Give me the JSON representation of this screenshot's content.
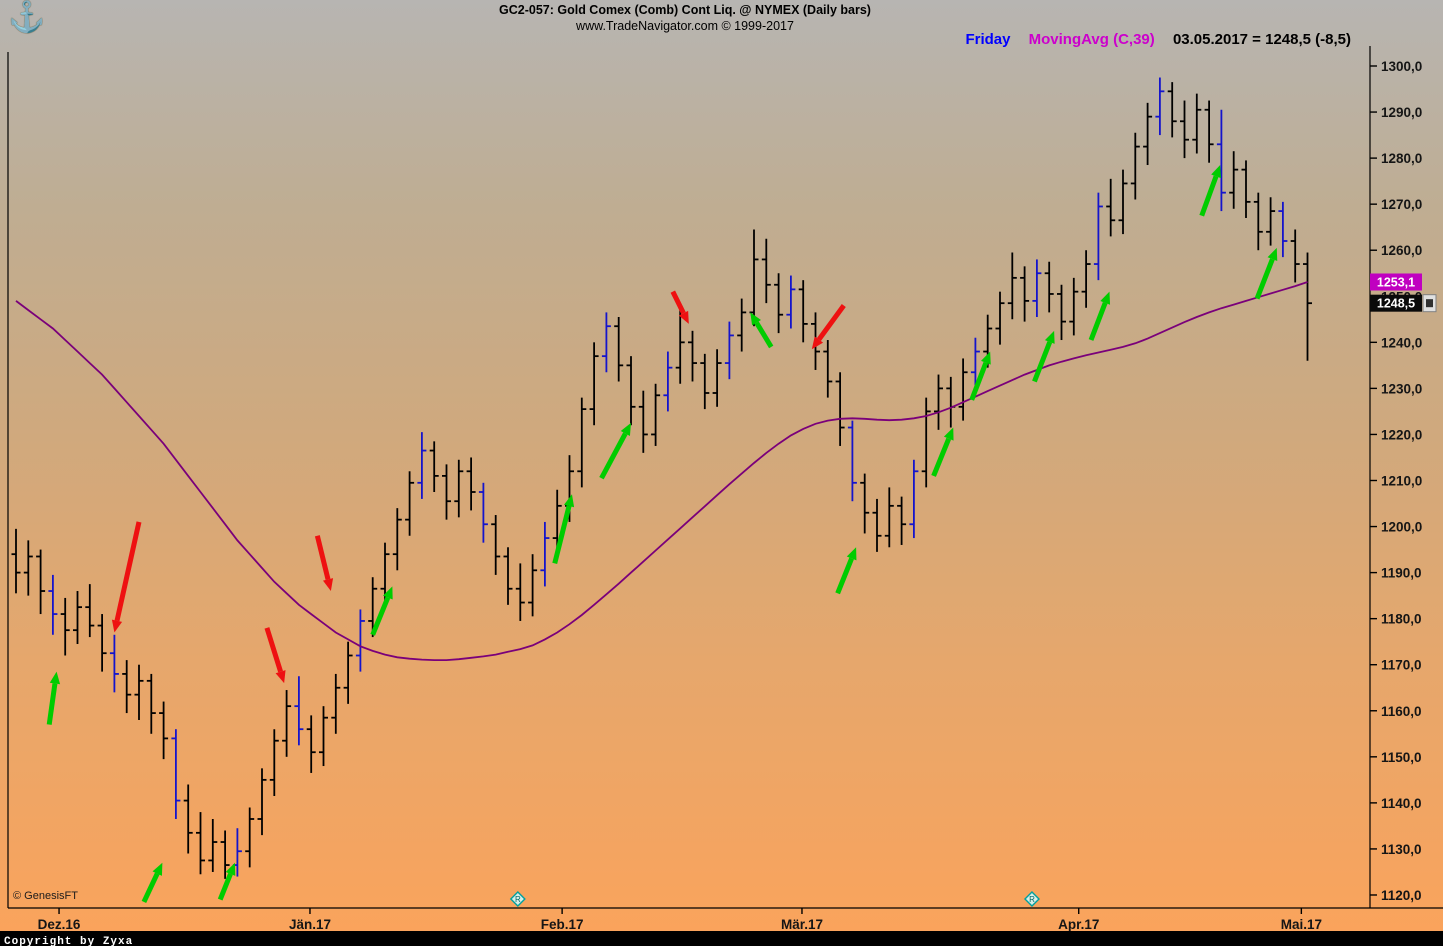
{
  "header": {
    "anchor_icon": "⚓",
    "title": "GC2-057:  Gold Comex (Comb) Cont Liq. @ NYMEX  (Daily bars)",
    "subtitle": "www.TradeNavigator.com © 1999-2017",
    "legend": {
      "day_label": "Friday",
      "indicator_label": "MovingAvg (C,39)",
      "quote_label": "03.05.2017 = 1248,5 (-8,5)",
      "day_color": "#0000ff",
      "indicator_color": "#cc00cc",
      "quote_color": "#000000"
    }
  },
  "footer": {
    "genesis": "© GenesisFT",
    "copyright": "Copyright by Zyxa"
  },
  "chart_data": {
    "type": "ohlc-bar",
    "title": "GC2-057: Gold Comex (Comb) Cont Liq. @ NYMEX (Daily bars)",
    "date": "03.05.2017",
    "last_close": 1248.5,
    "change": -8.5,
    "y_axis": {
      "side": "right",
      "min": 1120,
      "max": 1300,
      "step": 10,
      "labels": [
        "1300,0",
        "1290,0",
        "1280,0",
        "1270,0",
        "1260,0",
        "1250,0",
        "1240,0",
        "1230,0",
        "1220,0",
        "1210,0",
        "1200,0",
        "1190,0",
        "1180,0",
        "1170,0",
        "1160,0",
        "1150,0",
        "1140,0",
        "1130,0",
        "1120,0"
      ]
    },
    "x_axis": {
      "ticks": [
        {
          "label": "Dez.16",
          "i": 3.5
        },
        {
          "label": "Jän.17",
          "i": 23.9
        },
        {
          "label": "Feb.17",
          "i": 44.4
        },
        {
          "label": "Mär.17",
          "i": 63.9
        },
        {
          "label": "Apr.17",
          "i": 86.4
        },
        {
          "label": "Mai.17",
          "i": 104.5
        }
      ]
    },
    "bar_format": "[open, high, low, close, friday?1]",
    "bars": [
      [
        1194,
        1199.5,
        1185.5,
        1190
      ],
      [
        1190,
        1197,
        1185,
        1193.5
      ],
      [
        1193.5,
        1195,
        1181,
        1186
      ],
      [
        1186,
        1189.5,
        1176.5,
        1181,
        1
      ],
      [
        1181,
        1184.5,
        1172,
        1177.5
      ],
      [
        1177.5,
        1186,
        1174.5,
        1182.5
      ],
      [
        1182.5,
        1187.5,
        1176,
        1178.5
      ],
      [
        1178.5,
        1181,
        1168.5,
        1172.5
      ],
      [
        1172.5,
        1176.5,
        1164,
        1168,
        1
      ],
      [
        1168,
        1171,
        1159.5,
        1163.5
      ],
      [
        1163.5,
        1170,
        1158,
        1166.5
      ],
      [
        1166.5,
        1168,
        1155,
        1159.5
      ],
      [
        1159.5,
        1162,
        1149.5,
        1154
      ],
      [
        1154,
        1156,
        1136.5,
        1140.5,
        1
      ],
      [
        1140.5,
        1144,
        1129,
        1133.5
      ],
      [
        1133.5,
        1138,
        1124.5,
        1127.5
      ],
      [
        1127.5,
        1136.5,
        1125,
        1131.5
      ],
      [
        1131.5,
        1134,
        1123.5,
        1126.5
      ],
      [
        1126.5,
        1134.5,
        1124,
        1129.5,
        1
      ],
      [
        1129.5,
        1139,
        1126,
        1136.5
      ],
      [
        1136.5,
        1147.5,
        1133,
        1145
      ],
      [
        1145,
        1156,
        1141.5,
        1153.5
      ],
      [
        1153.5,
        1164.5,
        1150,
        1161
      ],
      [
        1161,
        1167.5,
        1152.5,
        1156,
        1
      ],
      [
        1156,
        1159,
        1146.5,
        1151
      ],
      [
        1151,
        1161,
        1148,
        1158.5
      ],
      [
        1158.5,
        1168,
        1155,
        1165
      ],
      [
        1165,
        1175,
        1161.5,
        1172
      ],
      [
        1172,
        1182,
        1168.5,
        1179.5,
        1
      ],
      [
        1179.5,
        1189,
        1176,
        1186.5
      ],
      [
        1186.5,
        1196.5,
        1183,
        1194
      ],
      [
        1194,
        1204,
        1190.5,
        1201.5
      ],
      [
        1201.5,
        1212,
        1198,
        1209.5
      ],
      [
        1209.5,
        1220.5,
        1206,
        1216.5,
        1
      ],
      [
        1216.5,
        1218.5,
        1207.5,
        1211
      ],
      [
        1211,
        1213.5,
        1201.5,
        1205.5
      ],
      [
        1205.5,
        1214.5,
        1202,
        1212
      ],
      [
        1212,
        1215,
        1203.5,
        1207.5
      ],
      [
        1207.5,
        1209.5,
        1196.5,
        1200.5,
        1
      ],
      [
        1200.5,
        1202.5,
        1189.5,
        1193.5
      ],
      [
        1193.5,
        1195.5,
        1183,
        1186.5
      ],
      [
        1186.5,
        1192,
        1179.5,
        1183.5
      ],
      [
        1183.5,
        1194,
        1180.5,
        1190.5
      ],
      [
        1190.5,
        1201,
        1187,
        1197.5,
        1
      ],
      [
        1197.5,
        1208,
        1194,
        1204.5
      ],
      [
        1204.5,
        1215.5,
        1201,
        1212
      ],
      [
        1212,
        1228,
        1208.5,
        1225.5
      ],
      [
        1225.5,
        1240,
        1222,
        1237
      ],
      [
        1237,
        1246.5,
        1233.5,
        1243.5,
        1
      ],
      [
        1243.5,
        1245.5,
        1231.5,
        1235
      ],
      [
        1235,
        1237,
        1222,
        1226
      ],
      [
        1226,
        1229.5,
        1216,
        1220
      ],
      [
        1220,
        1231,
        1217.5,
        1228.5
      ],
      [
        1228.5,
        1238,
        1225,
        1234.5,
        1
      ],
      [
        1234.5,
        1248,
        1231,
        1240
      ],
      [
        1240,
        1242.5,
        1231.5,
        1235.5
      ],
      [
        1235.5,
        1237.5,
        1225.5,
        1229
      ],
      [
        1229,
        1238.5,
        1226,
        1235.5
      ],
      [
        1235.5,
        1244.5,
        1232,
        1241.5,
        1
      ],
      [
        1241.5,
        1249.5,
        1238,
        1246.5
      ],
      [
        1246.5,
        1264.5,
        1243.5,
        1258
      ],
      [
        1258,
        1262.5,
        1248.5,
        1252.5
      ],
      [
        1252.5,
        1255,
        1242,
        1246
      ],
      [
        1246,
        1254.5,
        1243,
        1251.5,
        1
      ],
      [
        1251.5,
        1253.5,
        1240,
        1244
      ],
      [
        1244,
        1246.5,
        1234,
        1238
      ],
      [
        1238,
        1240.5,
        1228,
        1231.5
      ],
      [
        1231.5,
        1233.5,
        1217.5,
        1221.5
      ],
      [
        1221.5,
        1223,
        1205.5,
        1209.5,
        1
      ],
      [
        1209.5,
        1211.5,
        1198.5,
        1203
      ],
      [
        1203,
        1206,
        1194.5,
        1198
      ],
      [
        1198,
        1208.5,
        1195.5,
        1204.5
      ],
      [
        1204.5,
        1206.5,
        1196,
        1200.5
      ],
      [
        1200.5,
        1214.5,
        1197.5,
        1212,
        1
      ],
      [
        1212,
        1228,
        1208.5,
        1225
      ],
      [
        1225,
        1233,
        1221,
        1230
      ],
      [
        1230,
        1232.5,
        1221.5,
        1226
      ],
      [
        1226,
        1236.5,
        1223,
        1233.5
      ],
      [
        1233.5,
        1241,
        1229.5,
        1238,
        1
      ],
      [
        1238,
        1246,
        1234.5,
        1243
      ],
      [
        1243,
        1251,
        1239.5,
        1248.5
      ],
      [
        1248.5,
        1259.5,
        1245,
        1254
      ],
      [
        1254,
        1256.5,
        1244.5,
        1249
      ],
      [
        1249,
        1258,
        1245.5,
        1255,
        1
      ],
      [
        1255,
        1257.5,
        1246.5,
        1250.5
      ],
      [
        1250.5,
        1252.5,
        1240.5,
        1244.5
      ],
      [
        1244.5,
        1254,
        1241.5,
        1251
      ],
      [
        1251,
        1260,
        1247.5,
        1257
      ],
      [
        1257,
        1272.5,
        1253.5,
        1269.5,
        1
      ],
      [
        1269.5,
        1275.5,
        1263,
        1266.5
      ],
      [
        1266.5,
        1277.5,
        1263.5,
        1274.5
      ],
      [
        1274.5,
        1285.5,
        1271,
        1282.5
      ],
      [
        1282.5,
        1292,
        1278.5,
        1289
      ],
      [
        1289,
        1297.5,
        1285,
        1294.5,
        1
      ],
      [
        1294.5,
        1296.5,
        1284.5,
        1288
      ],
      [
        1288,
        1292.5,
        1280,
        1284
      ],
      [
        1284,
        1294,
        1281,
        1290.5
      ],
      [
        1290.5,
        1292.5,
        1279,
        1283
      ],
      [
        1283,
        1290.5,
        1268.5,
        1272.5,
        1
      ],
      [
        1272.5,
        1281.5,
        1269,
        1277.5
      ],
      [
        1277.5,
        1279.5,
        1267,
        1270.5
      ],
      [
        1270.5,
        1272.5,
        1260,
        1264
      ],
      [
        1264,
        1271.5,
        1261,
        1268.5
      ],
      [
        1268.5,
        1270.5,
        1258.5,
        1262,
        1
      ],
      [
        1262,
        1264.5,
        1253,
        1257
      ],
      [
        1257,
        1259.5,
        1236,
        1248.5
      ]
    ],
    "moving_average": {
      "label": "MovingAvg (C,39)",
      "period": 39,
      "color": "#7a007a",
      "last_value": 1253.1,
      "values": [
        1249.0,
        1247.0,
        1245.0,
        1243.0,
        1240.5,
        1238.0,
        1235.5,
        1233.0,
        1230.0,
        1227.0,
        1224.0,
        1221.0,
        1218.0,
        1214.5,
        1211.0,
        1207.5,
        1204.0,
        1200.5,
        1197.0,
        1194.0,
        1191.0,
        1188.0,
        1185.5,
        1183.0,
        1181.0,
        1179.0,
        1177.0,
        1175.5,
        1174.0,
        1173.0,
        1172.2,
        1171.6,
        1171.3,
        1171.1,
        1171.0,
        1171.0,
        1171.2,
        1171.5,
        1171.8,
        1172.2,
        1172.8,
        1173.4,
        1174.2,
        1175.5,
        1177.0,
        1178.8,
        1180.8,
        1183.0,
        1185.3,
        1187.6,
        1190.0,
        1192.4,
        1194.8,
        1197.2,
        1199.6,
        1202.0,
        1204.4,
        1206.8,
        1209.2,
        1211.5,
        1213.8,
        1216.0,
        1218.0,
        1219.8,
        1221.2,
        1222.3,
        1223.0,
        1223.4,
        1223.5,
        1223.4,
        1223.2,
        1223.1,
        1223.2,
        1223.5,
        1224.0,
        1224.8,
        1225.8,
        1227.0,
        1228.2,
        1229.4,
        1230.6,
        1231.8,
        1233.0,
        1234.0,
        1235.0,
        1235.8,
        1236.5,
        1237.2,
        1237.8,
        1238.4,
        1239.0,
        1239.8,
        1240.8,
        1242.0,
        1243.2,
        1244.4,
        1245.5,
        1246.5,
        1247.4,
        1248.2,
        1249.0,
        1249.8,
        1250.6,
        1251.4,
        1252.2,
        1253.1
      ]
    },
    "signals": {
      "buy_color": "#00cc00",
      "sell_color": "#ee1111",
      "buy": [
        {
          "tail": [
            2.7,
            1157
          ],
          "tip": [
            3.3,
            1168.5
          ]
        },
        {
          "tail": [
            10.4,
            1118.5
          ],
          "tip": [
            11.9,
            1127
          ]
        },
        {
          "tail": [
            16.6,
            1119
          ],
          "tip": [
            17.8,
            1127
          ]
        },
        {
          "tail": [
            29.0,
            1176.5
          ],
          "tip": [
            30.6,
            1187
          ]
        },
        {
          "tail": [
            43.8,
            1192
          ],
          "tip": [
            45.2,
            1207
          ]
        },
        {
          "tail": [
            47.6,
            1210.5
          ],
          "tip": [
            50.0,
            1222.5
          ]
        },
        {
          "tail": [
            61.4,
            1239
          ],
          "tip": [
            59.7,
            1246.5
          ]
        },
        {
          "tail": [
            66.8,
            1185.5
          ],
          "tip": [
            68.3,
            1195.5
          ]
        },
        {
          "tail": [
            74.6,
            1211
          ],
          "tip": [
            76.2,
            1221.5
          ]
        },
        {
          "tail": [
            77.7,
            1227.5
          ],
          "tip": [
            79.2,
            1238
          ]
        },
        {
          "tail": [
            82.8,
            1231.5
          ],
          "tip": [
            84.4,
            1242.5
          ]
        },
        {
          "tail": [
            87.4,
            1240.5
          ],
          "tip": [
            88.9,
            1251
          ]
        },
        {
          "tail": [
            96.4,
            1267.5
          ],
          "tip": [
            97.9,
            1278.5
          ]
        },
        {
          "tail": [
            100.9,
            1249.5
          ],
          "tip": [
            102.5,
            1260.5
          ]
        }
      ],
      "sell": [
        {
          "tail": [
            10.0,
            1201
          ],
          "tip": [
            8.0,
            1177
          ]
        },
        {
          "tail": [
            20.4,
            1178
          ],
          "tip": [
            21.8,
            1166
          ]
        },
        {
          "tail": [
            24.5,
            1198
          ],
          "tip": [
            25.6,
            1186
          ]
        },
        {
          "tail": [
            53.4,
            1251
          ],
          "tip": [
            54.7,
            1244
          ]
        },
        {
          "tail": [
            67.3,
            1248
          ],
          "tip": [
            64.7,
            1238.5
          ]
        }
      ]
    },
    "rollovers": {
      "label": "R",
      "positions": [
        40.8,
        82.6
      ]
    },
    "price_tags": [
      {
        "text": "1253,1",
        "value": 1253.1,
        "bg": "#c000c0"
      },
      {
        "text": "1248,5",
        "value": 1248.5,
        "bg": "#0a0a0a"
      }
    ],
    "style": {
      "bar_color": "#000000",
      "friday_color": "#1414cc",
      "background_top": "#b7b5b2",
      "background_bottom": "#fba35b"
    }
  }
}
